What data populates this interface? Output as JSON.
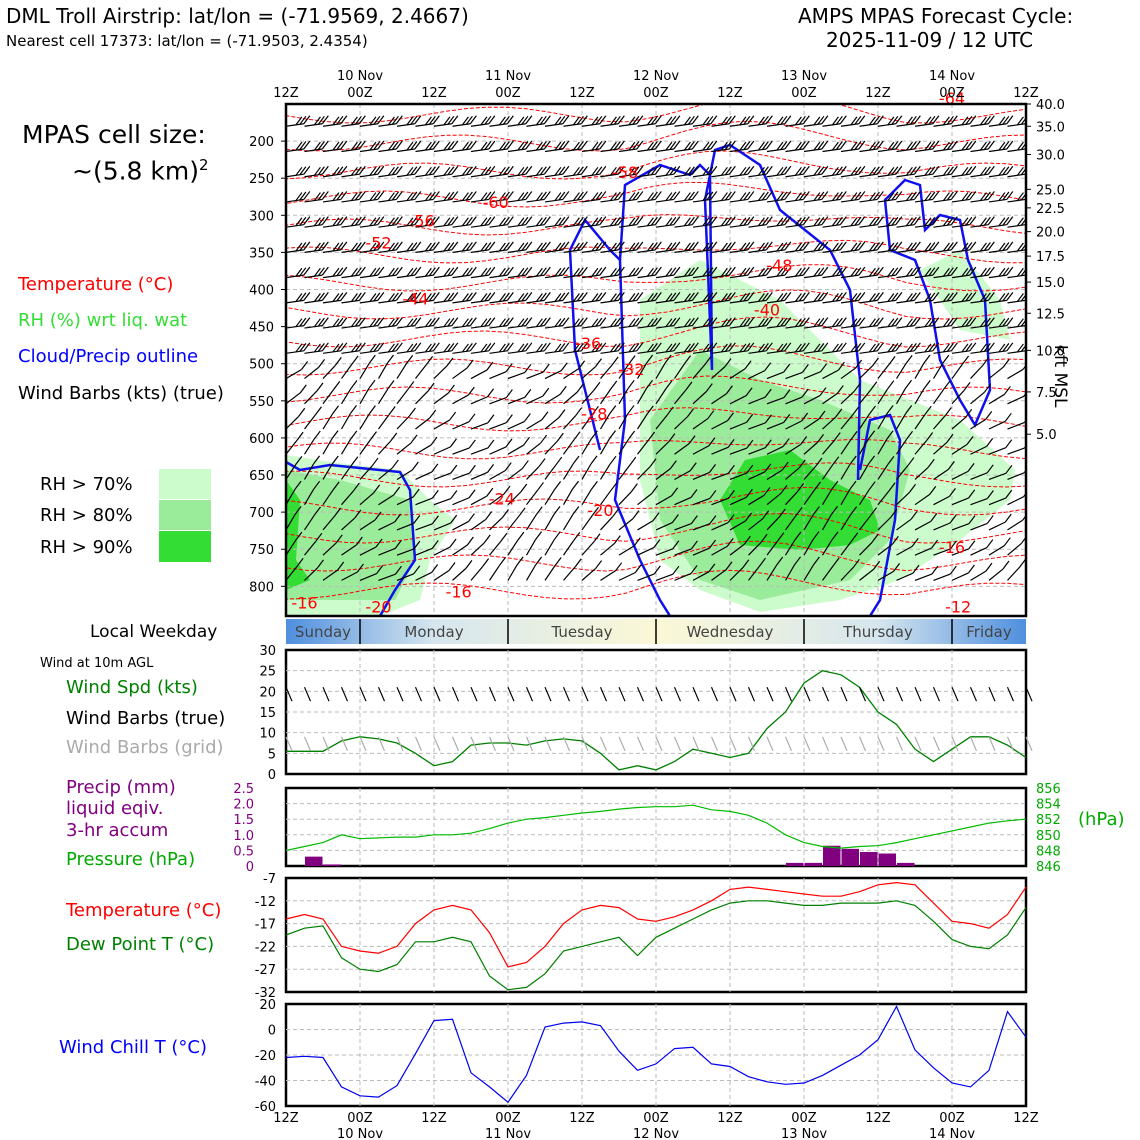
{
  "header": {
    "title": "DML Troll Airstrip: lat/lon = (-71.9569, 2.4667)",
    "subtitle": "Nearest cell 17373: lat/lon = (-71.9503, 2.4354)",
    "cycle_label": "AMPS MPAS Forecast Cycle:",
    "cycle_value": "2025-11-09 / 12 UTC"
  },
  "cell_size": {
    "line1": "MPAS cell size:",
    "line2": "~(5.8 km)",
    "sup": "2"
  },
  "legend_upper": [
    {
      "text": "Temperature (°C)",
      "color": "#ff0000"
    },
    {
      "text": "RH (%) wrt liq. wat",
      "color": "#33dd33"
    },
    {
      "text": "Cloud/Precip outline",
      "color": "#0000ff"
    },
    {
      "text": "Wind Barbs (kts) (true)",
      "color": "#000000"
    }
  ],
  "rh_legend": [
    {
      "text": "RH > 70%",
      "color": "#ccfccc"
    },
    {
      "text": "RH > 80%",
      "color": "#9aeb9a"
    },
    {
      "text": "RH > 90%",
      "color": "#33dd33"
    }
  ],
  "time_axis": {
    "top_hours": [
      "12Z",
      "00Z",
      "12Z",
      "00Z",
      "12Z",
      "00Z",
      "12Z",
      "00Z",
      "12Z",
      "00Z",
      "12Z"
    ],
    "dates": [
      "10 Nov",
      "11 Nov",
      "12 Nov",
      "13 Nov",
      "14 Nov"
    ]
  },
  "weekday": {
    "label": "Local Weekday",
    "days": [
      "Sunday",
      "Monday",
      "Tuesday",
      "Wednesday",
      "Thursday",
      "Friday"
    ]
  },
  "wind10m": {
    "title": "Wind at 10m AGL",
    "legend": [
      {
        "text": "Wind Spd (kts)",
        "color": "#008000"
      },
      {
        "text": "Wind Barbs (true)",
        "color": "#000000"
      },
      {
        "text": "Wind Barbs (grid)",
        "color": "#aaaaaa"
      }
    ]
  },
  "precip_legend": [
    {
      "text": "Precip (mm)",
      "color": "#800080"
    },
    {
      "text": "liquid eqiv.",
      "color": "#800080"
    },
    {
      "text": "3-hr accum",
      "color": "#800080"
    },
    {
      "text": "Pressure (hPa)",
      "color": "#00aa00"
    }
  ],
  "pressure_unit": "(hPa)",
  "temp_legend": [
    {
      "text": "Temperature (°C)",
      "color": "#ff0000"
    },
    {
      "text": "Dew Point T (°C)",
      "color": "#008000"
    }
  ],
  "windchill_legend": {
    "text": "Wind Chill T (°C)",
    "color": "#0000ff"
  },
  "chart_data": [
    {
      "type": "contour",
      "name": "profile",
      "x_hours": [
        0,
        120
      ],
      "ylabel_right": "kft MSL",
      "ylim": [
        840,
        150
      ],
      "pressure_ticks": [
        "200",
        "250",
        "300",
        "350",
        "400",
        "450",
        "500",
        "550",
        "600",
        "650",
        "700",
        "750",
        "800"
      ],
      "pressure_tick_values": [
        200,
        250,
        300,
        350,
        400,
        450,
        500,
        550,
        600,
        650,
        700,
        750,
        800
      ],
      "height_ticks": [
        "40.0",
        "35.0",
        "30.0",
        "25.0",
        "22.5",
        "20.0",
        "17.5",
        "15.0",
        "12.5",
        "10.0",
        "7.5",
        "5.0"
      ],
      "height_tick_pressures": [
        150,
        180,
        218,
        265,
        290,
        322,
        355,
        390,
        432,
        482,
        538,
        595
      ],
      "temp_labels": [
        {
          "text": "-64",
          "t": 108,
          "p": 150
        },
        {
          "text": "-60",
          "t": 34,
          "p": 290
        },
        {
          "text": "-56",
          "t": 22,
          "p": 315
        },
        {
          "text": "-52",
          "t": 15,
          "p": 345
        },
        {
          "text": "-58",
          "t": 55,
          "p": 250
        },
        {
          "text": "-48",
          "t": 80,
          "p": 375
        },
        {
          "text": "-44",
          "t": 21,
          "p": 420
        },
        {
          "text": "-40",
          "t": 78,
          "p": 435
        },
        {
          "text": "-36",
          "t": 49,
          "p": 480
        },
        {
          "text": "-32",
          "t": 56,
          "p": 515
        },
        {
          "text": "-28",
          "t": 50,
          "p": 575
        },
        {
          "text": "-24",
          "t": 35,
          "p": 690
        },
        {
          "text": "-20",
          "t": 51,
          "p": 705
        },
        {
          "text": "-16",
          "t": 108,
          "p": 755
        },
        {
          "text": "-16",
          "t": 28,
          "p": 815
        },
        {
          "text": "-16",
          "t": 3,
          "p": 830
        },
        {
          "text": "-20",
          "t": 15,
          "p": 835
        },
        {
          "text": "-12",
          "t": 109,
          "p": 835
        }
      ]
    },
    {
      "type": "line",
      "name": "wind_speed",
      "ylim": [
        0,
        30
      ],
      "yticks": [
        "0",
        "5",
        "10",
        "15",
        "20",
        "25",
        "30"
      ],
      "x": [
        0,
        3,
        6,
        9,
        12,
        15,
        18,
        21,
        24,
        27,
        30,
        33,
        36,
        39,
        42,
        45,
        48,
        51,
        54,
        57,
        60,
        63,
        66,
        69,
        72,
        75,
        78,
        81,
        84,
        87,
        90,
        93,
        96,
        99,
        102,
        105,
        108,
        111,
        114,
        117,
        120
      ],
      "values": [
        5.5,
        5.5,
        5.5,
        8,
        9,
        8.5,
        7.5,
        5,
        2,
        3,
        7,
        7.5,
        7.5,
        7,
        8,
        8.5,
        8,
        5,
        1,
        2,
        1,
        3,
        6,
        5,
        4,
        5,
        11,
        15,
        22,
        25,
        24,
        21,
        15,
        12,
        6,
        3,
        6,
        9,
        9,
        7,
        4
      ]
    },
    {
      "type": "bar+line",
      "name": "precip_pressure",
      "precip_ylim": [
        0,
        2.5
      ],
      "precip_yticks": [
        "0",
        "0.5",
        "1.0",
        "1.5",
        "2.0",
        "2.5"
      ],
      "pressure_ylim": [
        846,
        856
      ],
      "pressure_yticks": [
        "846",
        "848",
        "850",
        "852",
        "854",
        "856"
      ],
      "precip_x": [
        0,
        3,
        6,
        9,
        12,
        15,
        18,
        21,
        24,
        27,
        30,
        33,
        36,
        39,
        42,
        45,
        48,
        51,
        54,
        57,
        60,
        63,
        66,
        69,
        72,
        75,
        78,
        81,
        84,
        87,
        90,
        93,
        96,
        99,
        102,
        105,
        108,
        111,
        114,
        117
      ],
      "precip": [
        0,
        0.3,
        0.05,
        0,
        0,
        0,
        0,
        0,
        0,
        0,
        0,
        0,
        0,
        0,
        0,
        0,
        0,
        0,
        0,
        0,
        0,
        0,
        0,
        0,
        0,
        0,
        0,
        0.1,
        0.1,
        0.65,
        0.55,
        0.45,
        0.4,
        0.1,
        0,
        0,
        0,
        0,
        0,
        0
      ],
      "pressure_x": [
        0,
        3,
        6,
        9,
        12,
        15,
        18,
        21,
        24,
        27,
        30,
        33,
        36,
        39,
        42,
        45,
        48,
        51,
        54,
        57,
        60,
        63,
        66,
        69,
        72,
        75,
        78,
        81,
        84,
        87,
        90,
        93,
        96,
        99,
        102,
        105,
        108,
        111,
        114,
        117,
        120
      ],
      "pressure": [
        848.0,
        848.5,
        849.0,
        850.0,
        849.5,
        849.6,
        849.7,
        849.7,
        850.0,
        850.0,
        850.2,
        850.8,
        851.5,
        852.0,
        852.2,
        852.5,
        852.8,
        853.0,
        853.3,
        853.5,
        853.6,
        853.6,
        853.8,
        853.2,
        853.0,
        852.5,
        851.5,
        850.0,
        849.0,
        848.5,
        848.3,
        848.5,
        848.6,
        849.0,
        849.5,
        850.0,
        850.5,
        851.0,
        851.5,
        851.8,
        852.0
      ]
    },
    {
      "type": "line",
      "name": "temperature_dewpoint",
      "ylim": [
        -32,
        -7
      ],
      "yticks": [
        "-32",
        "-27",
        "-22",
        "-17",
        "-12",
        "-7"
      ],
      "x": [
        0,
        3,
        6,
        9,
        12,
        15,
        18,
        21,
        24,
        27,
        30,
        33,
        36,
        39,
        42,
        45,
        48,
        51,
        54,
        57,
        60,
        63,
        66,
        69,
        72,
        75,
        78,
        81,
        84,
        87,
        90,
        93,
        96,
        99,
        102,
        105,
        108,
        111,
        114,
        117,
        120
      ],
      "series": [
        {
          "color": "#ff0000",
          "values": [
            -16,
            -15,
            -16,
            -22,
            -23,
            -23.5,
            -22,
            -17,
            -14,
            -13,
            -14,
            -19,
            -26.5,
            -25.5,
            -22,
            -17,
            -14,
            -13,
            -13.5,
            -16,
            -16.5,
            -15.5,
            -14,
            -12,
            -9.5,
            -9,
            -9.5,
            -10,
            -10.5,
            -11,
            -11,
            -10,
            -8.5,
            -8,
            -8.5,
            -12.5,
            -16.5,
            -17,
            -18,
            -15,
            -9
          ]
        },
        {
          "color": "#008000",
          "values": [
            -19.5,
            -18,
            -17.5,
            -24.5,
            -27,
            -27.5,
            -26,
            -21,
            -21,
            -20,
            -21,
            -28.5,
            -31.5,
            -31,
            -28,
            -23,
            -22,
            -21,
            -20,
            -24,
            -20,
            -18,
            -16,
            -14,
            -12.5,
            -12,
            -12,
            -12.5,
            -13,
            -13,
            -12.5,
            -12.5,
            -12.5,
            -12,
            -13,
            -16.5,
            -20.5,
            -22,
            -22.5,
            -19.5,
            -13.5
          ]
        }
      ]
    },
    {
      "type": "line",
      "name": "wind_chill",
      "ylim": [
        -60,
        20
      ],
      "yticks": [
        "-60",
        "-40",
        "-20",
        "0",
        "20"
      ],
      "x": [
        0,
        3,
        6,
        9,
        12,
        15,
        18,
        21,
        24,
        27,
        30,
        33,
        36,
        39,
        42,
        45,
        48,
        51,
        54,
        57,
        60,
        63,
        66,
        69,
        72,
        75,
        78,
        81,
        84,
        87,
        90,
        93,
        96,
        99,
        102,
        105,
        108,
        111,
        114,
        117,
        120
      ],
      "values": [
        -22,
        -21,
        -22,
        -45,
        -52,
        -53,
        -44,
        -19,
        7,
        8,
        -34,
        -45,
        -57,
        -36,
        2,
        5,
        6,
        3,
        -17,
        -32,
        -27,
        -15,
        -14,
        -27,
        -29,
        -37,
        -41,
        -43,
        -42,
        -36,
        -28,
        -20,
        -8,
        18,
        -16,
        -30,
        -42,
        -45,
        -32,
        14,
        -6
      ]
    }
  ]
}
